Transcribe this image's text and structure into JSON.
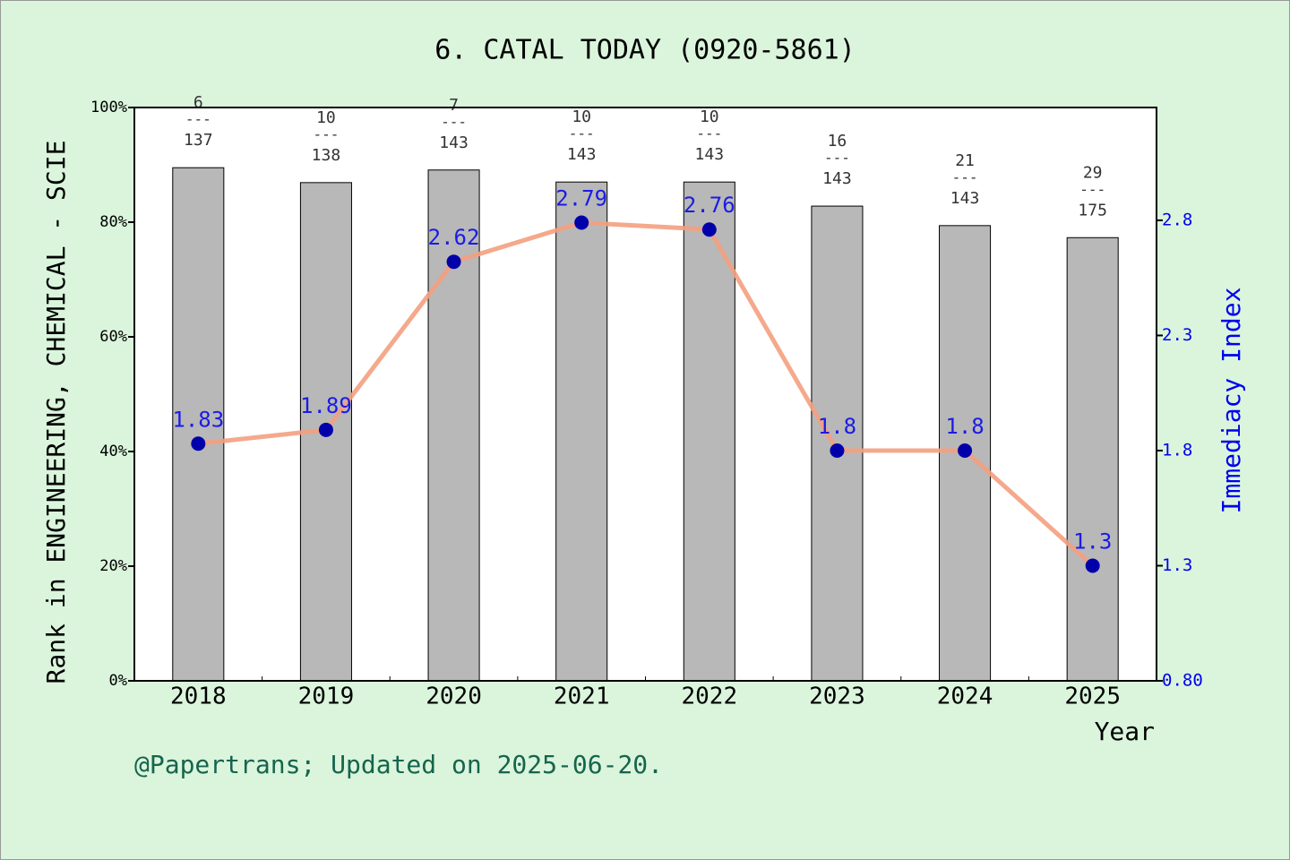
{
  "chart_data": {
    "type": "bar",
    "title": "6. CATAL TODAY (0920-5861)",
    "y_label": "Rank in ENGINEERING, CHEMICAL - SCIE",
    "y2_label": "Immediacy Index",
    "x_label": "Year",
    "footer": "@Papertrans; Updated on 2025-06-20.",
    "categories": [
      "2018",
      "2019",
      "2020",
      "2021",
      "2022",
      "2023",
      "2024",
      "2025"
    ],
    "series": [
      {
        "type": "bar",
        "color": "#b8b8b8",
        "values": [
          89.5,
          86.9,
          89.1,
          87.0,
          87.0,
          82.8,
          79.4,
          77.3
        ]
      },
      {
        "type": "line",
        "axis": "y2",
        "color": "#f4a080",
        "marker_color": "#0000aa",
        "label_color": "#0000ee",
        "values": [
          1.83,
          1.89,
          2.62,
          2.79,
          2.76,
          1.8,
          1.8,
          1.3
        ]
      }
    ],
    "rank_labels": {
      "ranks": [
        "6",
        "10",
        "7",
        "10",
        "10",
        "16",
        "21",
        "29"
      ],
      "separator": "---",
      "totals": [
        "137",
        "138",
        "143",
        "143",
        "143",
        "143",
        "143",
        "175"
      ]
    },
    "ylim": [
      0,
      100
    ],
    "yticks": [
      {
        "value": 0,
        "label": "0%"
      },
      {
        "value": 20,
        "label": "20%"
      },
      {
        "value": 40,
        "label": "40%"
      },
      {
        "value": 60,
        "label": "60%"
      },
      {
        "value": 80,
        "label": "80%"
      },
      {
        "value": 100,
        "label": "100%"
      }
    ],
    "y2lim": [
      0.8,
      3.29
    ],
    "y2ticks": [
      {
        "value": 0.8,
        "label": "0.80"
      },
      1.3,
      1.8,
      2.3,
      2.8
    ]
  }
}
